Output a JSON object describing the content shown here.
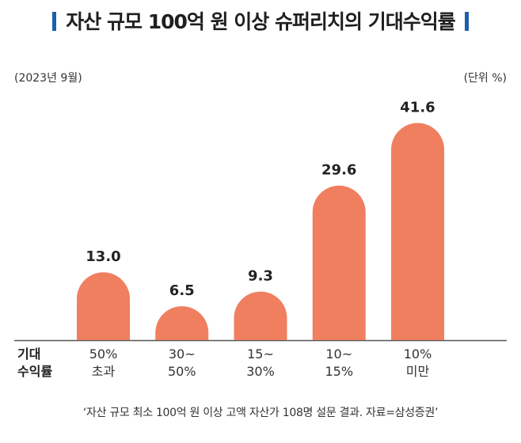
{
  "title": "자산 규모 100억 원 이상 슈퍼리치의 기대수익률",
  "colors": {
    "bar": "#f07f60",
    "accent": "#1b5fae",
    "axis": "#555555"
  },
  "date_note": "(2023년 9월)",
  "unit_note": "(단위 %)",
  "category_header": [
    "기대",
    "수익률"
  ],
  "source": "‘자산 규모 최소 100억 원 이상 고액 자산가 108명 설문 결과. 자료=삼성증권’",
  "chart_data": {
    "type": "bar",
    "title": "자산 규모 100억 원 이상 슈퍼리치의 기대수익률",
    "xlabel": "기대 수익률",
    "ylabel": "단위 %",
    "categories": [
      [
        "50%",
        "초과"
      ],
      [
        "30~",
        "50%"
      ],
      [
        "15~",
        "30%"
      ],
      [
        "10~",
        "15%"
      ],
      [
        "10%",
        "미만"
      ]
    ],
    "values": [
      13.0,
      6.5,
      9.3,
      29.6,
      41.6
    ],
    "value_labels": [
      "13.0",
      "6.5",
      "9.3",
      "29.6",
      "41.6"
    ],
    "ylim": [
      0,
      45
    ],
    "grid": false,
    "legend": "none"
  }
}
